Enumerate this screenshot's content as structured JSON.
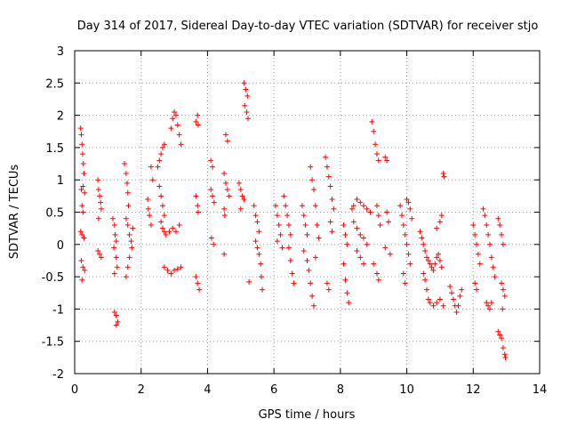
{
  "chart_data": {
    "type": "scatter",
    "title": "Day 314 of 2017, Sidereal Day-to-day VTEC variation (SDTVAR) for receiver stjo",
    "xlabel": "GPS time / hours",
    "ylabel": "SDTVAR / TECUs",
    "xlim": [
      0,
      14
    ],
    "ylim": [
      -2,
      3
    ],
    "xticks": [
      "0",
      "2",
      "4",
      "6",
      "8",
      "10",
      "12",
      "14"
    ],
    "yticks": [
      "-2",
      "-1.5",
      "-1",
      "-0.5",
      "0",
      "0.5",
      "1",
      "1.5",
      "2",
      "2.5",
      "3"
    ],
    "grid": true,
    "marker": "+",
    "color": "#ff0000",
    "series": [
      {
        "name": "SDTVAR",
        "points": [
          [
            0.18,
            1.8
          ],
          [
            0.2,
            1.7
          ],
          [
            0.22,
            1.55
          ],
          [
            0.24,
            1.4
          ],
          [
            0.26,
            1.25
          ],
          [
            0.28,
            1.1
          ],
          [
            0.2,
            0.85
          ],
          [
            0.25,
            0.9
          ],
          [
            0.3,
            0.8
          ],
          [
            0.22,
            0.6
          ],
          [
            0.25,
            0.5
          ],
          [
            0.18,
            0.2
          ],
          [
            0.22,
            0.15
          ],
          [
            0.28,
            0.1
          ],
          [
            0.2,
            -0.25
          ],
          [
            0.25,
            -0.35
          ],
          [
            0.3,
            -0.4
          ],
          [
            0.22,
            -0.55
          ],
          [
            0.7,
            1.0
          ],
          [
            0.72,
            0.85
          ],
          [
            0.75,
            0.75
          ],
          [
            0.78,
            0.65
          ],
          [
            0.8,
            0.55
          ],
          [
            0.72,
            0.4
          ],
          [
            0.7,
            -0.1
          ],
          [
            0.75,
            -0.15
          ],
          [
            0.8,
            -0.2
          ],
          [
            1.15,
            0.4
          ],
          [
            1.2,
            0.3
          ],
          [
            1.22,
            0.15
          ],
          [
            1.25,
            0.05
          ],
          [
            1.18,
            -0.05
          ],
          [
            1.25,
            -0.2
          ],
          [
            1.28,
            -0.35
          ],
          [
            1.2,
            -0.45
          ],
          [
            1.2,
            -1.05
          ],
          [
            1.25,
            -1.1
          ],
          [
            1.3,
            -1.2
          ],
          [
            1.25,
            -1.25
          ],
          [
            1.5,
            1.25
          ],
          [
            1.55,
            1.1
          ],
          [
            1.58,
            0.95
          ],
          [
            1.6,
            0.8
          ],
          [
            1.62,
            0.6
          ],
          [
            1.55,
            0.4
          ],
          [
            1.6,
            0.3
          ],
          [
            1.65,
            0.15
          ],
          [
            1.7,
            0.05
          ],
          [
            1.75,
            0.25
          ],
          [
            1.72,
            -0.05
          ],
          [
            1.65,
            -0.2
          ],
          [
            1.6,
            -0.35
          ],
          [
            1.55,
            -0.5
          ],
          [
            2.2,
            0.7
          ],
          [
            2.22,
            0.55
          ],
          [
            2.25,
            0.45
          ],
          [
            2.3,
            0.3
          ],
          [
            2.3,
            1.2
          ],
          [
            2.35,
            1.0
          ],
          [
            2.5,
            1.2
          ],
          [
            2.55,
            1.3
          ],
          [
            2.6,
            1.4
          ],
          [
            2.65,
            1.5
          ],
          [
            2.7,
            1.55
          ],
          [
            2.55,
            0.9
          ],
          [
            2.6,
            0.75
          ],
          [
            2.65,
            0.6
          ],
          [
            2.7,
            0.45
          ],
          [
            2.6,
            0.35
          ],
          [
            2.65,
            0.25
          ],
          [
            2.7,
            0.2
          ],
          [
            2.75,
            0.15
          ],
          [
            2.85,
            0.2
          ],
          [
            2.95,
            0.25
          ],
          [
            3.05,
            0.2
          ],
          [
            3.15,
            0.3
          ],
          [
            2.7,
            -0.35
          ],
          [
            2.8,
            -0.4
          ],
          [
            2.9,
            -0.45
          ],
          [
            3.0,
            -0.4
          ],
          [
            3.1,
            -0.38
          ],
          [
            3.2,
            -0.35
          ],
          [
            2.9,
            1.8
          ],
          [
            2.95,
            1.95
          ],
          [
            3.0,
            2.05
          ],
          [
            3.05,
            2.0
          ],
          [
            3.1,
            1.85
          ],
          [
            3.15,
            1.7
          ],
          [
            3.2,
            1.55
          ],
          [
            3.65,
            1.9
          ],
          [
            3.7,
            2.0
          ],
          [
            3.72,
            1.85
          ],
          [
            3.65,
            0.75
          ],
          [
            3.7,
            0.6
          ],
          [
            3.72,
            0.5
          ],
          [
            3.65,
            -0.5
          ],
          [
            3.7,
            -0.6
          ],
          [
            3.75,
            -0.7
          ],
          [
            4.1,
            1.3
          ],
          [
            4.15,
            1.2
          ],
          [
            4.1,
            0.85
          ],
          [
            4.15,
            0.75
          ],
          [
            4.2,
            0.65
          ],
          [
            4.12,
            0.1
          ],
          [
            4.18,
            0.0
          ],
          [
            4.5,
            1.1
          ],
          [
            4.55,
            0.95
          ],
          [
            4.6,
            0.85
          ],
          [
            4.65,
            0.75
          ],
          [
            4.55,
            1.7
          ],
          [
            4.6,
            1.6
          ],
          [
            4.5,
            0.55
          ],
          [
            4.52,
            0.45
          ],
          [
            4.5,
            -0.15
          ],
          [
            4.95,
            0.95
          ],
          [
            5.0,
            0.85
          ],
          [
            5.05,
            0.75
          ],
          [
            5.1,
            0.7
          ],
          [
            5.0,
            0.55
          ],
          [
            5.1,
            2.5
          ],
          [
            5.15,
            2.4
          ],
          [
            5.2,
            2.3
          ],
          [
            5.12,
            2.15
          ],
          [
            5.18,
            2.05
          ],
          [
            5.22,
            1.95
          ],
          [
            5.25,
            -0.58
          ],
          [
            5.4,
            0.6
          ],
          [
            5.45,
            0.45
          ],
          [
            5.5,
            0.35
          ],
          [
            5.55,
            0.2
          ],
          [
            5.5,
            -0.05
          ],
          [
            5.55,
            -0.15
          ],
          [
            5.6,
            -0.3
          ],
          [
            5.62,
            -0.5
          ],
          [
            5.65,
            -0.7
          ],
          [
            5.45,
            0.05
          ],
          [
            6.05,
            0.6
          ],
          [
            6.1,
            0.45
          ],
          [
            6.15,
            0.3
          ],
          [
            6.2,
            0.15
          ],
          [
            6.1,
            0.05
          ],
          [
            6.25,
            -0.05
          ],
          [
            6.3,
            0.75
          ],
          [
            6.35,
            0.6
          ],
          [
            6.4,
            0.45
          ],
          [
            6.45,
            0.3
          ],
          [
            6.5,
            0.15
          ],
          [
            6.45,
            -0.05
          ],
          [
            6.5,
            -0.25
          ],
          [
            6.55,
            -0.45
          ],
          [
            6.6,
            -0.6
          ],
          [
            6.85,
            0.6
          ],
          [
            6.9,
            0.45
          ],
          [
            6.95,
            0.3
          ],
          [
            7.0,
            0.15
          ],
          [
            6.9,
            -0.1
          ],
          [
            7.0,
            -0.25
          ],
          [
            7.05,
            -0.4
          ],
          [
            7.1,
            -0.6
          ],
          [
            7.15,
            -0.8
          ],
          [
            7.2,
            -0.95
          ],
          [
            7.1,
            1.2
          ],
          [
            7.15,
            1.0
          ],
          [
            7.2,
            0.85
          ],
          [
            7.25,
            0.6
          ],
          [
            7.3,
            0.3
          ],
          [
            7.35,
            0.1
          ],
          [
            7.25,
            -0.2
          ],
          [
            7.55,
            1.35
          ],
          [
            7.6,
            1.2
          ],
          [
            7.65,
            1.05
          ],
          [
            7.7,
            0.9
          ],
          [
            7.75,
            0.7
          ],
          [
            7.8,
            0.55
          ],
          [
            7.7,
            0.35
          ],
          [
            7.75,
            0.2
          ],
          [
            7.6,
            -0.6
          ],
          [
            7.65,
            -0.7
          ],
          [
            8.1,
            0.3
          ],
          [
            8.15,
            0.15
          ],
          [
            8.2,
            0.0
          ],
          [
            8.1,
            -0.3
          ],
          [
            8.15,
            -0.55
          ],
          [
            8.2,
            -0.75
          ],
          [
            8.25,
            -0.9
          ],
          [
            8.35,
            0.55
          ],
          [
            8.4,
            0.6
          ],
          [
            8.5,
            0.7
          ],
          [
            8.6,
            0.65
          ],
          [
            8.7,
            0.6
          ],
          [
            8.8,
            0.55
          ],
          [
            8.9,
            0.5
          ],
          [
            8.4,
            0.35
          ],
          [
            8.5,
            0.25
          ],
          [
            8.6,
            0.15
          ],
          [
            8.7,
            0.1
          ],
          [
            8.8,
            0.0
          ],
          [
            8.5,
            -0.1
          ],
          [
            8.6,
            -0.2
          ],
          [
            8.7,
            -0.3
          ],
          [
            8.95,
            1.9
          ],
          [
            9.0,
            1.75
          ],
          [
            9.05,
            1.55
          ],
          [
            9.1,
            1.4
          ],
          [
            9.15,
            1.3
          ],
          [
            9.35,
            1.35
          ],
          [
            9.4,
            1.3
          ],
          [
            9.1,
            0.6
          ],
          [
            9.15,
            0.45
          ],
          [
            9.2,
            0.3
          ],
          [
            9.0,
            -0.3
          ],
          [
            9.1,
            -0.45
          ],
          [
            9.15,
            -0.55
          ],
          [
            9.4,
            0.5
          ],
          [
            9.45,
            0.35
          ],
          [
            9.35,
            -0.05
          ],
          [
            9.5,
            -0.15
          ],
          [
            9.8,
            0.6
          ],
          [
            9.85,
            0.45
          ],
          [
            9.9,
            0.3
          ],
          [
            9.95,
            0.15
          ],
          [
            10.0,
            0.0
          ],
          [
            10.05,
            -0.15
          ],
          [
            10.1,
            -0.3
          ],
          [
            9.9,
            -0.45
          ],
          [
            9.95,
            -0.6
          ],
          [
            10.0,
            0.7
          ],
          [
            10.05,
            0.65
          ],
          [
            10.1,
            0.55
          ],
          [
            10.15,
            0.4
          ],
          [
            10.4,
            0.2
          ],
          [
            10.45,
            0.1
          ],
          [
            10.5,
            0.0
          ],
          [
            10.55,
            -0.1
          ],
          [
            10.6,
            -0.2
          ],
          [
            10.65,
            -0.25
          ],
          [
            10.7,
            -0.3
          ],
          [
            10.75,
            -0.35
          ],
          [
            10.8,
            -0.4
          ],
          [
            10.85,
            -0.3
          ],
          [
            10.9,
            -0.2
          ],
          [
            10.95,
            -0.15
          ],
          [
            11.0,
            -0.25
          ],
          [
            11.05,
            -0.35
          ],
          [
            10.5,
            -0.45
          ],
          [
            10.55,
            -0.55
          ],
          [
            10.6,
            -0.7
          ],
          [
            10.65,
            -0.85
          ],
          [
            10.7,
            -0.9
          ],
          [
            10.8,
            -0.95
          ],
          [
            10.9,
            -0.9
          ],
          [
            11.0,
            -0.85
          ],
          [
            11.1,
            -0.95
          ],
          [
            10.9,
            0.25
          ],
          [
            11.0,
            0.35
          ],
          [
            11.05,
            0.45
          ],
          [
            11.1,
            1.1
          ],
          [
            11.12,
            1.05
          ],
          [
            11.3,
            -0.65
          ],
          [
            11.35,
            -0.75
          ],
          [
            11.4,
            -0.85
          ],
          [
            11.45,
            -0.95
          ],
          [
            11.5,
            -1.05
          ],
          [
            11.55,
            -0.95
          ],
          [
            11.6,
            -0.8
          ],
          [
            11.65,
            -0.7
          ],
          [
            12.0,
            0.3
          ],
          [
            12.05,
            0.15
          ],
          [
            12.1,
            0.0
          ],
          [
            12.15,
            -0.15
          ],
          [
            12.2,
            -0.3
          ],
          [
            12.05,
            -0.6
          ],
          [
            12.1,
            -0.7
          ],
          [
            12.3,
            0.55
          ],
          [
            12.35,
            0.45
          ],
          [
            12.4,
            0.3
          ],
          [
            12.45,
            0.15
          ],
          [
            12.5,
            0.0
          ],
          [
            12.55,
            -0.2
          ],
          [
            12.6,
            -0.35
          ],
          [
            12.65,
            -0.5
          ],
          [
            12.4,
            -0.9
          ],
          [
            12.45,
            -0.95
          ],
          [
            12.5,
            -1.0
          ],
          [
            12.55,
            -0.9
          ],
          [
            12.75,
            0.4
          ],
          [
            12.8,
            0.3
          ],
          [
            12.85,
            0.15
          ],
          [
            12.9,
            0.0
          ],
          [
            12.85,
            -0.6
          ],
          [
            12.9,
            -0.7
          ],
          [
            12.95,
            -0.8
          ],
          [
            12.88,
            -1.0
          ],
          [
            12.75,
            -1.35
          ],
          [
            12.8,
            -1.4
          ],
          [
            12.85,
            -1.45
          ],
          [
            12.9,
            -1.6
          ],
          [
            12.95,
            -1.7
          ],
          [
            12.97,
            -1.75
          ]
        ]
      }
    ]
  }
}
